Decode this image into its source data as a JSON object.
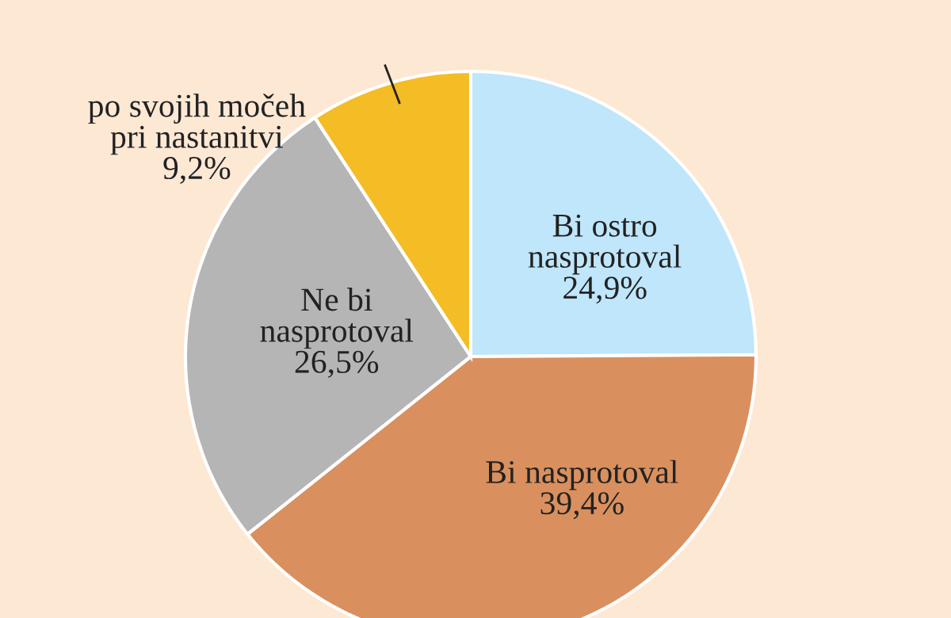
{
  "chart_data": {
    "type": "pie",
    "categories": [
      "Bi ostro\nnasprotoval",
      "Bi nasprotoval",
      "Ne bi\nnasprotoval",
      "po svojih močeh\npri nastanitvi"
    ],
    "values": [
      24.9,
      39.4,
      26.5,
      9.2
    ],
    "value_labels": [
      "24,9%",
      "39,4%",
      "26,5%",
      "9,2%"
    ],
    "colors": [
      "#bfe6fa",
      "#d9905e",
      "#b5b5b5",
      "#f4bc25"
    ]
  }
}
